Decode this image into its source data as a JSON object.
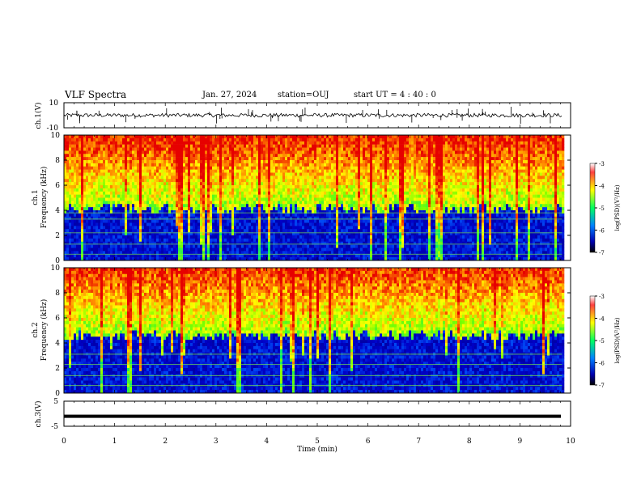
{
  "header": {
    "title": "VLF Spectra",
    "date": "Jan. 27, 2024",
    "station": "station=OUJ",
    "start": "start  UT =   4 : 40 : 0"
  },
  "chart_data": [
    {
      "type": "line",
      "panel": "ch1-waveform",
      "ylabel": "ch.1(V)",
      "ylim": [
        -10,
        10
      ],
      "yticks": [
        "10",
        "-10"
      ],
      "xlim": [
        0,
        10
      ],
      "baseline": 0,
      "description_values": {
        "approx_mean_V": 0.0,
        "approx_noise_amplitude_V": 1.5,
        "max_spike_V": 6.5,
        "min_spike_V": -7.0
      }
    },
    {
      "type": "heatmap",
      "panel": "ch1-spectrogram",
      "ylabel_line1": "ch.1",
      "ylabel_line2": "Frequency (kHz)",
      "ylim": [
        0,
        10
      ],
      "yticks": [
        "0",
        "2",
        "4",
        "6",
        "8",
        "10"
      ],
      "xlim": [
        0,
        10
      ],
      "data_end_min": 9.83,
      "colorbar": {
        "label": "log(PSD)(V²/Hz)",
        "range": [
          -7,
          -3
        ],
        "ticks": [
          "-3",
          "-4",
          "-5",
          "-6",
          "-7"
        ],
        "colormap": [
          "#7f0000",
          "#ff0000",
          "#ffff00",
          "#00ff80",
          "#0080ff",
          "#0000a0",
          "#000000"
        ]
      },
      "features": {
        "low_band_kHz": [
          0,
          4.5
        ],
        "high_band_kHz": [
          4.5,
          10
        ],
        "notable_lines_kHz": [
          0.5,
          1.3,
          2.2,
          3.3,
          3.8
        ]
      }
    },
    {
      "type": "heatmap",
      "panel": "ch2-spectrogram",
      "ylabel_line1": "ch.2",
      "ylabel_line2": "Frequency (kHz)",
      "ylim": [
        0,
        10
      ],
      "yticks": [
        "0",
        "2",
        "4",
        "6",
        "8",
        "10"
      ],
      "xlim": [
        0,
        10
      ],
      "data_end_min": 9.83,
      "colorbar": {
        "label": "log(PSD)(V²/Hz)",
        "range": [
          -7,
          -3
        ],
        "ticks": [
          "-3",
          "-4",
          "-5",
          "-6",
          "-7"
        ],
        "colormap": [
          "#7f0000",
          "#ff0000",
          "#ffff00",
          "#00ff80",
          "#0080ff",
          "#0000a0",
          "#000000"
        ]
      },
      "features": {
        "low_band_kHz": [
          0,
          5
        ],
        "high_band_kHz": [
          5,
          10
        ],
        "notable_lines_kHz": [
          0.6,
          1.4,
          2.3,
          3.1
        ]
      }
    },
    {
      "type": "line",
      "panel": "ch3-waveform",
      "ylabel": "ch.3(V)",
      "ylim": [
        -5,
        5
      ],
      "yticks": [
        "5",
        "-5"
      ],
      "xlim": [
        0,
        10
      ],
      "constant_value_V": -1.0,
      "xlabel": "Time (min)",
      "xticks": [
        "0",
        "1",
        "2",
        "3",
        "4",
        "5",
        "6",
        "7",
        "8",
        "9",
        "10"
      ]
    }
  ]
}
